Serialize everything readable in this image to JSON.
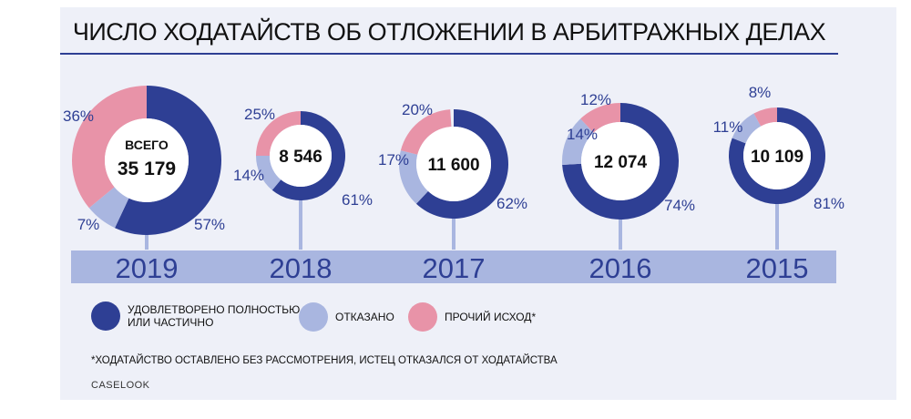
{
  "title": "ЧИСЛО ХОДАТАЙСТВ ОБ ОТЛОЖЕНИИ В АРБИТРАЖНЫХ ДЕЛАХ",
  "total_label": "ВСЕГО",
  "colors": {
    "satisfied": "#2e3f94",
    "refused": "#a9b6e0",
    "other": "#e893a8",
    "timeline": "#a9b6e0",
    "text_blue": "#2e3f94"
  },
  "legend": [
    {
      "key": "satisfied",
      "label_line1": "УДОВЛЕТВОРЕНО ПОЛНОСТЬЮ",
      "label_line2": "ИЛИ ЧАСТИЧНО"
    },
    {
      "key": "refused",
      "label_line1": "ОТКАЗАНО",
      "label_line2": ""
    },
    {
      "key": "other",
      "label_line1": "ПРОЧИЙ ИСХОД*",
      "label_line2": ""
    }
  ],
  "footnote": "*ХОДАТАЙСТВО ОСТАВЛЕНО БЕЗ РАССМОТРЕНИЯ, ИСТЕЦ ОТКАЗАЛСЯ ОТ ХОДАТАЙСТВА",
  "source": "CASELOOK",
  "chart_data": {
    "type": "pie",
    "categories": [
      "2019",
      "2018",
      "2017",
      "2016",
      "2015"
    ],
    "series": [
      {
        "name": "УДОВЛЕТВОРЕНО ПОЛНОСТЬЮ ИЛИ ЧАСТИЧНО",
        "values": [
          57,
          61,
          62,
          74,
          81
        ]
      },
      {
        "name": "ОТКАЗАНО",
        "values": [
          7,
          14,
          17,
          14,
          11
        ]
      },
      {
        "name": "ПРОЧИЙ ИСХОД*",
        "values": [
          36,
          25,
          20,
          12,
          8
        ]
      }
    ],
    "totals": [
      "35 179",
      "8 546",
      "11 600",
      "12 074",
      "10 109"
    ],
    "percent_labels": [
      {
        "satisfied": "57%",
        "refused": "7%",
        "other": "36%"
      },
      {
        "satisfied": "61%",
        "refused": "14%",
        "other": "25%"
      },
      {
        "satisfied": "62%",
        "refused": "17%",
        "other": "20%"
      },
      {
        "satisfied": "74%",
        "refused": "14%",
        "other": "12%"
      },
      {
        "satisfied": "81%",
        "refused": "11%",
        "other": "8%"
      }
    ]
  }
}
